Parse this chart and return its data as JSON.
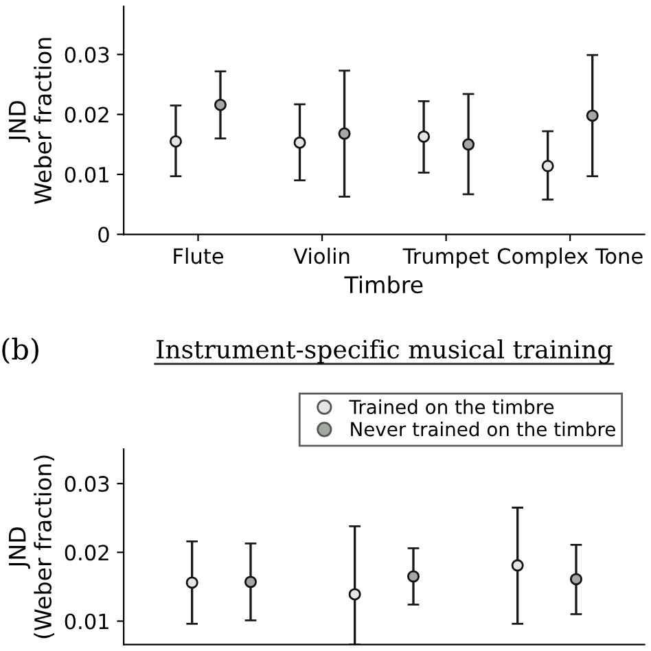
{
  "chart_data": [
    {
      "type": "scatter",
      "ylabel": "JND\nWeber fraction",
      "xlabel": "Timbre",
      "categories": [
        "Flute",
        "Violin",
        "Trumpet",
        "Complex Tone"
      ],
      "ylim": [
        0,
        0.038
      ],
      "yticks": [
        0,
        0.01,
        0.02,
        0.03
      ],
      "marker": "circle",
      "grid": false,
      "legend": false,
      "series": [
        {
          "color": "#e4e6e4",
          "values": [
            0.0155,
            0.0153,
            0.0163,
            0.0114
          ],
          "errors": [
            [
              0.0097,
              0.0215
            ],
            [
              0.009,
              0.0217
            ],
            [
              0.0103,
              0.0222
            ],
            [
              0.0058,
              0.0172
            ]
          ]
        },
        {
          "color": "#a3a8a3",
          "values": [
            0.0216,
            0.0168,
            0.015,
            0.0198
          ],
          "errors": [
            [
              0.016,
              0.0272
            ],
            [
              0.0063,
              0.0273
            ],
            [
              0.0067,
              0.0234
            ],
            [
              0.0097,
              0.0299
            ]
          ]
        }
      ]
    },
    {
      "type": "scatter",
      "title": "Instrument-specific musical training",
      "annotations": [
        "(b)"
      ],
      "ylabel": "JND\n(Weber fraction)",
      "categories": [
        null,
        null,
        null
      ],
      "ylim": [
        0.0066,
        0.035
      ],
      "yticks": [
        0.01,
        0.02,
        0.03
      ],
      "marker": "circle",
      "grid": false,
      "legend": "top right",
      "tick_labels": "y",
      "series": [
        {
          "name": "Trained on the timbre",
          "color": "#e4e6e4",
          "values": [
            0.0156,
            0.0139,
            0.0181
          ],
          "errors": [
            [
              0.0096,
              0.0216
            ],
            [
              0.0066,
              0.0238
            ],
            [
              0.0096,
              0.0265
            ]
          ]
        },
        {
          "name": "Never trained on the timbre",
          "color": "#a3a8a3",
          "values": [
            0.0157,
            0.0165,
            0.0161
          ],
          "errors": [
            [
              0.0101,
              0.0213
            ],
            [
              0.0124,
              0.0206
            ],
            [
              0.011,
              0.0211
            ]
          ]
        }
      ]
    }
  ]
}
